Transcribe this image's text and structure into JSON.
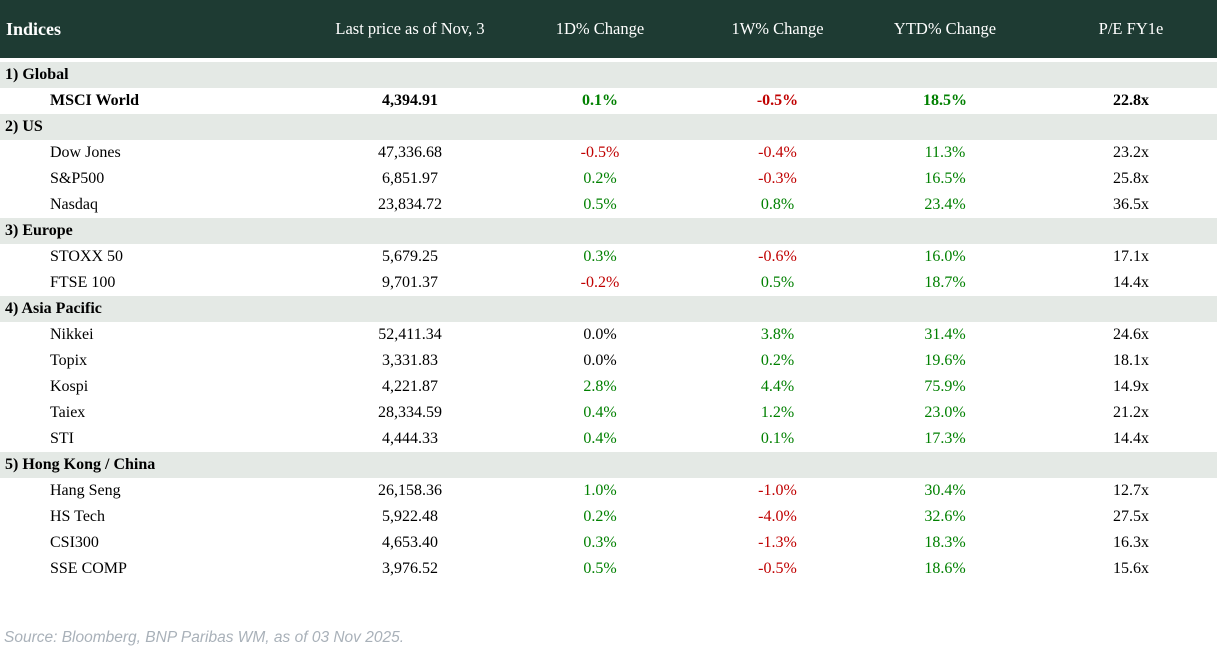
{
  "table": {
    "columns": [
      "Indices",
      "Last price as of Nov, 3",
      "1D% Change",
      "1W% Change",
      "YTD% Change",
      "P/E FY1e"
    ],
    "sections": [
      {
        "label": "1) Global",
        "rows": [
          {
            "name": "MSCI World",
            "bold": true,
            "price": "4,394.91",
            "d1": "0.1%",
            "w1": "-0.5%",
            "ytd": "18.5%",
            "pe": "22.8x"
          }
        ]
      },
      {
        "label": "2) US",
        "rows": [
          {
            "name": "Dow Jones",
            "bold": false,
            "price": "47,336.68",
            "d1": "-0.5%",
            "w1": "-0.4%",
            "ytd": "11.3%",
            "pe": "23.2x"
          },
          {
            "name": "S&P500",
            "bold": false,
            "price": "6,851.97",
            "d1": "0.2%",
            "w1": "-0.3%",
            "ytd": "16.5%",
            "pe": "25.8x"
          },
          {
            "name": "Nasdaq",
            "bold": false,
            "price": "23,834.72",
            "d1": "0.5%",
            "w1": "0.8%",
            "ytd": "23.4%",
            "pe": "36.5x"
          }
        ]
      },
      {
        "label": "3) Europe",
        "rows": [
          {
            "name": "STOXX 50",
            "bold": false,
            "price": "5,679.25",
            "d1": "0.3%",
            "w1": "-0.6%",
            "ytd": "16.0%",
            "pe": "17.1x"
          },
          {
            "name": "FTSE 100",
            "bold": false,
            "price": "9,701.37",
            "d1": "-0.2%",
            "w1": "0.5%",
            "ytd": "18.7%",
            "pe": "14.4x"
          }
        ]
      },
      {
        "label": "4) Asia Pacific",
        "rows": [
          {
            "name": "Nikkei",
            "bold": false,
            "price": "52,411.34",
            "d1": "0.0%",
            "w1": "3.8%",
            "ytd": "31.4%",
            "pe": "24.6x"
          },
          {
            "name": "Topix",
            "bold": false,
            "price": "3,331.83",
            "d1": "0.0%",
            "w1": "0.2%",
            "ytd": "19.6%",
            "pe": "18.1x"
          },
          {
            "name": "Kospi",
            "bold": false,
            "price": "4,221.87",
            "d1": "2.8%",
            "w1": "4.4%",
            "ytd": "75.9%",
            "pe": "14.9x"
          },
          {
            "name": "Taiex",
            "bold": false,
            "price": "28,334.59",
            "d1": "0.4%",
            "w1": "1.2%",
            "ytd": "23.0%",
            "pe": "21.2x"
          },
          {
            "name": "STI",
            "bold": false,
            "price": "4,444.33",
            "d1": "0.4%",
            "w1": "0.1%",
            "ytd": "17.3%",
            "pe": "14.4x"
          }
        ]
      },
      {
        "label": "5) Hong Kong / China",
        "rows": [
          {
            "name": "Hang Seng",
            "bold": false,
            "price": "26,158.36",
            "d1": "1.0%",
            "w1": "-1.0%",
            "ytd": "30.4%",
            "pe": "12.7x"
          },
          {
            "name": "HS Tech",
            "bold": false,
            "price": "5,922.48",
            "d1": "0.2%",
            "w1": "-4.0%",
            "ytd": "32.6%",
            "pe": "27.5x"
          },
          {
            "name": "CSI300",
            "bold": false,
            "price": "4,653.40",
            "d1": "0.3%",
            "w1": "-1.3%",
            "ytd": "18.3%",
            "pe": "16.3x"
          },
          {
            "name": "SSE COMP",
            "bold": false,
            "price": "3,976.52",
            "d1": "0.5%",
            "w1": "-0.5%",
            "ytd": "18.6%",
            "pe": "15.6x"
          }
        ]
      }
    ]
  },
  "colors": {
    "header_bg": "#1e3b33",
    "section_bg": "#e4e9e5",
    "positive": "#008000",
    "negative": "#c00000",
    "neutral": "#000000"
  },
  "footer": {
    "source": "Source: Bloomberg, BNP Paribas WM, as of 03 Nov 2025."
  }
}
